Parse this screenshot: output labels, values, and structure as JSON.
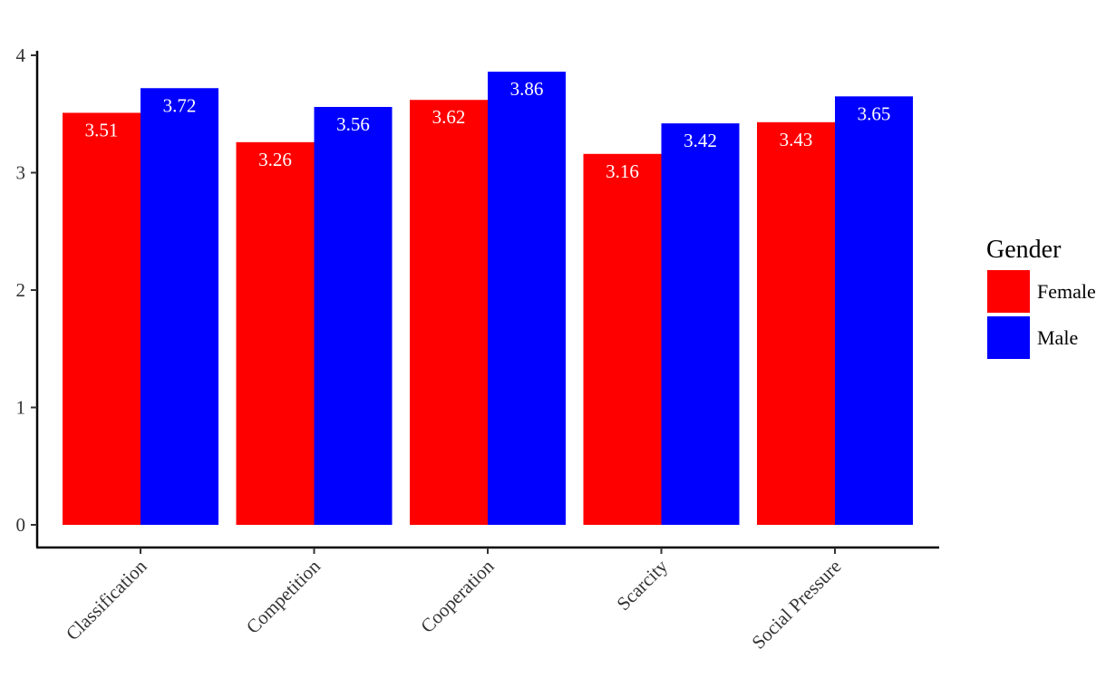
{
  "chart_data": {
    "type": "bar",
    "title": "",
    "xlabel": "",
    "ylabel": "",
    "categories": [
      "Classification",
      "Competition",
      "Cooperation",
      "Scarcity",
      "Social Pressure"
    ],
    "series": [
      {
        "name": "Female",
        "color": "#ff0000",
        "values": [
          3.51,
          3.26,
          3.62,
          3.16,
          3.43
        ],
        "labels": [
          "3.51",
          "3.26",
          "3.62",
          "3.16",
          "3.43"
        ]
      },
      {
        "name": "Male",
        "color": "#0000ff",
        "values": [
          3.72,
          3.56,
          3.86,
          3.42,
          3.65
        ],
        "labels": [
          "3.72",
          "3.56",
          "3.86",
          "3.42",
          "3.65"
        ]
      }
    ],
    "ylim": [
      0,
      4
    ],
    "yticks": [
      "0",
      "1",
      "2",
      "3",
      "4"
    ],
    "grid": false,
    "legend": {
      "title": "Gender",
      "position": "right"
    }
  }
}
